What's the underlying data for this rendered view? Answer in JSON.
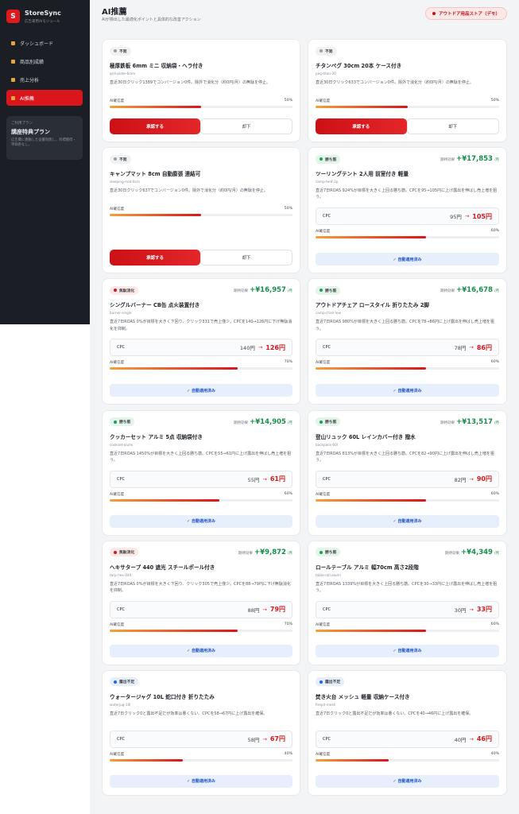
{
  "sidebar": {
    "logo": "S",
    "brand": "StoreSync",
    "brand_sub": "広告運用AIモジュール",
    "nav": [
      "ダッシュボード",
      "商品別成績",
      "売上分析",
      "AI推薦"
    ],
    "plan": {
      "label": "ご利用プラン",
      "name": "講座特典プラン",
      "note": "広告費に連動した従量制無し、目標獲得・単価各なし。"
    }
  },
  "header": {
    "title": "AI推薦",
    "subtitle": "AIが検出した最適化ポイントと具体的な改善アクション",
    "store": "アウトドア用品ストア（デモ）"
  },
  "labels": {
    "effect": "期待効果",
    "per_month": "/月",
    "confidence": "AI確信度",
    "cpc": "CPC",
    "arrow": "→",
    "approve": "承認する",
    "reject": "却下",
    "auto": "✓ 自動適用済み"
  },
  "cards": [
    {
      "badge": "不発",
      "badge_color": "#f0f1f3",
      "title": "極厚鉄板 6mm ミニ 収納袋・ヘラ付き",
      "slug": "grill-plate-6mm",
      "desc": "直近30日クリック1389でコンバージョン0件。除外で消化分（約0円/月）の無駄を停止。",
      "confidence": 50,
      "confidence_label": "50%"
    },
    {
      "badge": "不発",
      "badge_color": "#f0f1f3",
      "title": "チタンペグ 30cm 20本 ケース付き",
      "slug": "peg-titan-20",
      "desc": "直近30日クリック633でコンバージョン0件。除外で消化分（約0円/月）の無駄を停止。",
      "confidence": 50,
      "confidence_label": "50%"
    },
    {
      "badge": "不発",
      "badge_color": "#f0f1f3",
      "title": "キャンプマット 8cm 自動膨張 連結可",
      "slug": "sleeping-mat-8cm",
      "desc": "直近30日クリック637でコンバージョン0件。除外で消化分（約0円/月）の無駄を停止。",
      "confidence": 50,
      "confidence_label": "50%"
    },
    {
      "badge": "勝ち筋",
      "badge_color": "#e3f5ea",
      "effect": "+¥17,853",
      "title": "ツーリングテント 2人用 前室付き 軽量",
      "slug": "camp-tent-2p",
      "desc": "直近7日ROAS 924%が目標を大きく上回る勝ち筋。CPCを95→105円に上げ露出を伸ばし売上増を狙う。",
      "cpc_old": "95円",
      "cpc_new": "105円",
      "confidence": 60,
      "confidence_label": "60%"
    },
    {
      "badge": "無駄消化",
      "badge_color": "#fde8e8",
      "effect": "+¥16,957",
      "title": "シングルバーナー CB缶 点火装置付き",
      "slug": "burner-single",
      "desc": "直近7日ROAS 0%が目標を大きく下回り、クリック331で売上僅少。CPCを140→126円に下げ無駄消化を抑制。",
      "cpc_old": "140円",
      "cpc_new": "126円",
      "confidence": 70,
      "confidence_label": "70%"
    },
    {
      "badge": "勝ち筋",
      "badge_color": "#e3f5ea",
      "effect": "+¥16,678",
      "title": "アウトドアチェア ロースタイル 折りたたみ 2脚",
      "slug": "camp-chair-low",
      "desc": "直近7日ROAS 980%が目標を大きく上回る勝ち筋。CPCを78→86円に上げ露出を伸ばし売上増を狙う。",
      "cpc_old": "78円",
      "cpc_new": "86円",
      "confidence": 60,
      "confidence_label": "60%"
    },
    {
      "badge": "勝ち筋",
      "badge_color": "#e3f5ea",
      "effect": "+¥14,905",
      "title": "クッカーセット アルミ 5点 収納袋付き",
      "slug": "cookset-alumi",
      "desc": "直近7日ROAS 1450%が目標を大きく上回る勝ち筋。CPCを55→61円に上げ露出を伸ばし売上増を狙う。",
      "cpc_old": "55円",
      "cpc_new": "61円",
      "confidence": 60,
      "confidence_label": "60%"
    },
    {
      "badge": "勝ち筋",
      "badge_color": "#e3f5ea",
      "effect": "+¥13,517",
      "title": "登山リュック 60L レインカバー付き 撥水",
      "slug": "backpack-60l",
      "desc": "直近7日ROAS 813%が目標を大きく上回る勝ち筋。CPCを82→90円に上げ露出を伸ばし売上増を狙う。",
      "cpc_old": "82円",
      "cpc_new": "90円",
      "confidence": 60,
      "confidence_label": "60%"
    },
    {
      "badge": "無駄消化",
      "badge_color": "#fde8e8",
      "effect": "+¥9,872",
      "title": "ヘキサタープ 440 遮光 スチールポール付き",
      "slug": "tarp-hex-440",
      "desc": "直近7日ROAS 0%が目標を大きく下回り、クリック305で売上僅少。CPCを88→79円に下げ無駄消化を抑制。",
      "cpc_old": "88円",
      "cpc_new": "79円",
      "confidence": 70,
      "confidence_label": "70%"
    },
    {
      "badge": "勝ち筋",
      "badge_color": "#e3f5ea",
      "effect": "+¥4,349",
      "title": "ロールテーブル アルミ 幅70cm 高さ2段階",
      "slug": "table-roll-alumi",
      "desc": "直近7日ROAS 1339%が目標を大きく上回る勝ち筋。CPCを30→33円に上げ露出を伸ばし売上増を狙う。",
      "cpc_old": "30円",
      "cpc_new": "33円",
      "confidence": 60,
      "confidence_label": "60%"
    },
    {
      "badge": "露出不足",
      "badge_color": "#e6eefc",
      "title": "ウォータージャグ 10L 蛇口付き 折りたたみ",
      "slug": "waterjug-10l",
      "desc": "直近7日クリック0と露出不足だが効率は悪くない。CPCを58→67円に上げ露出を確保。",
      "cpc_old": "58円",
      "cpc_new": "67円",
      "confidence": 40,
      "confidence_label": "40%"
    },
    {
      "badge": "露出不足",
      "badge_color": "#e6eefc",
      "title": "焚き火台 メッシュ 軽量 収納ケース付き",
      "slug": "firepit-mesh",
      "desc": "直近7日クリック0と露出不足だが効率は悪くない。CPCを40→46円に上げ露出を確保。",
      "cpc_old": "40円",
      "cpc_new": "46円",
      "confidence": 40,
      "confidence_label": "40%"
    }
  ]
}
